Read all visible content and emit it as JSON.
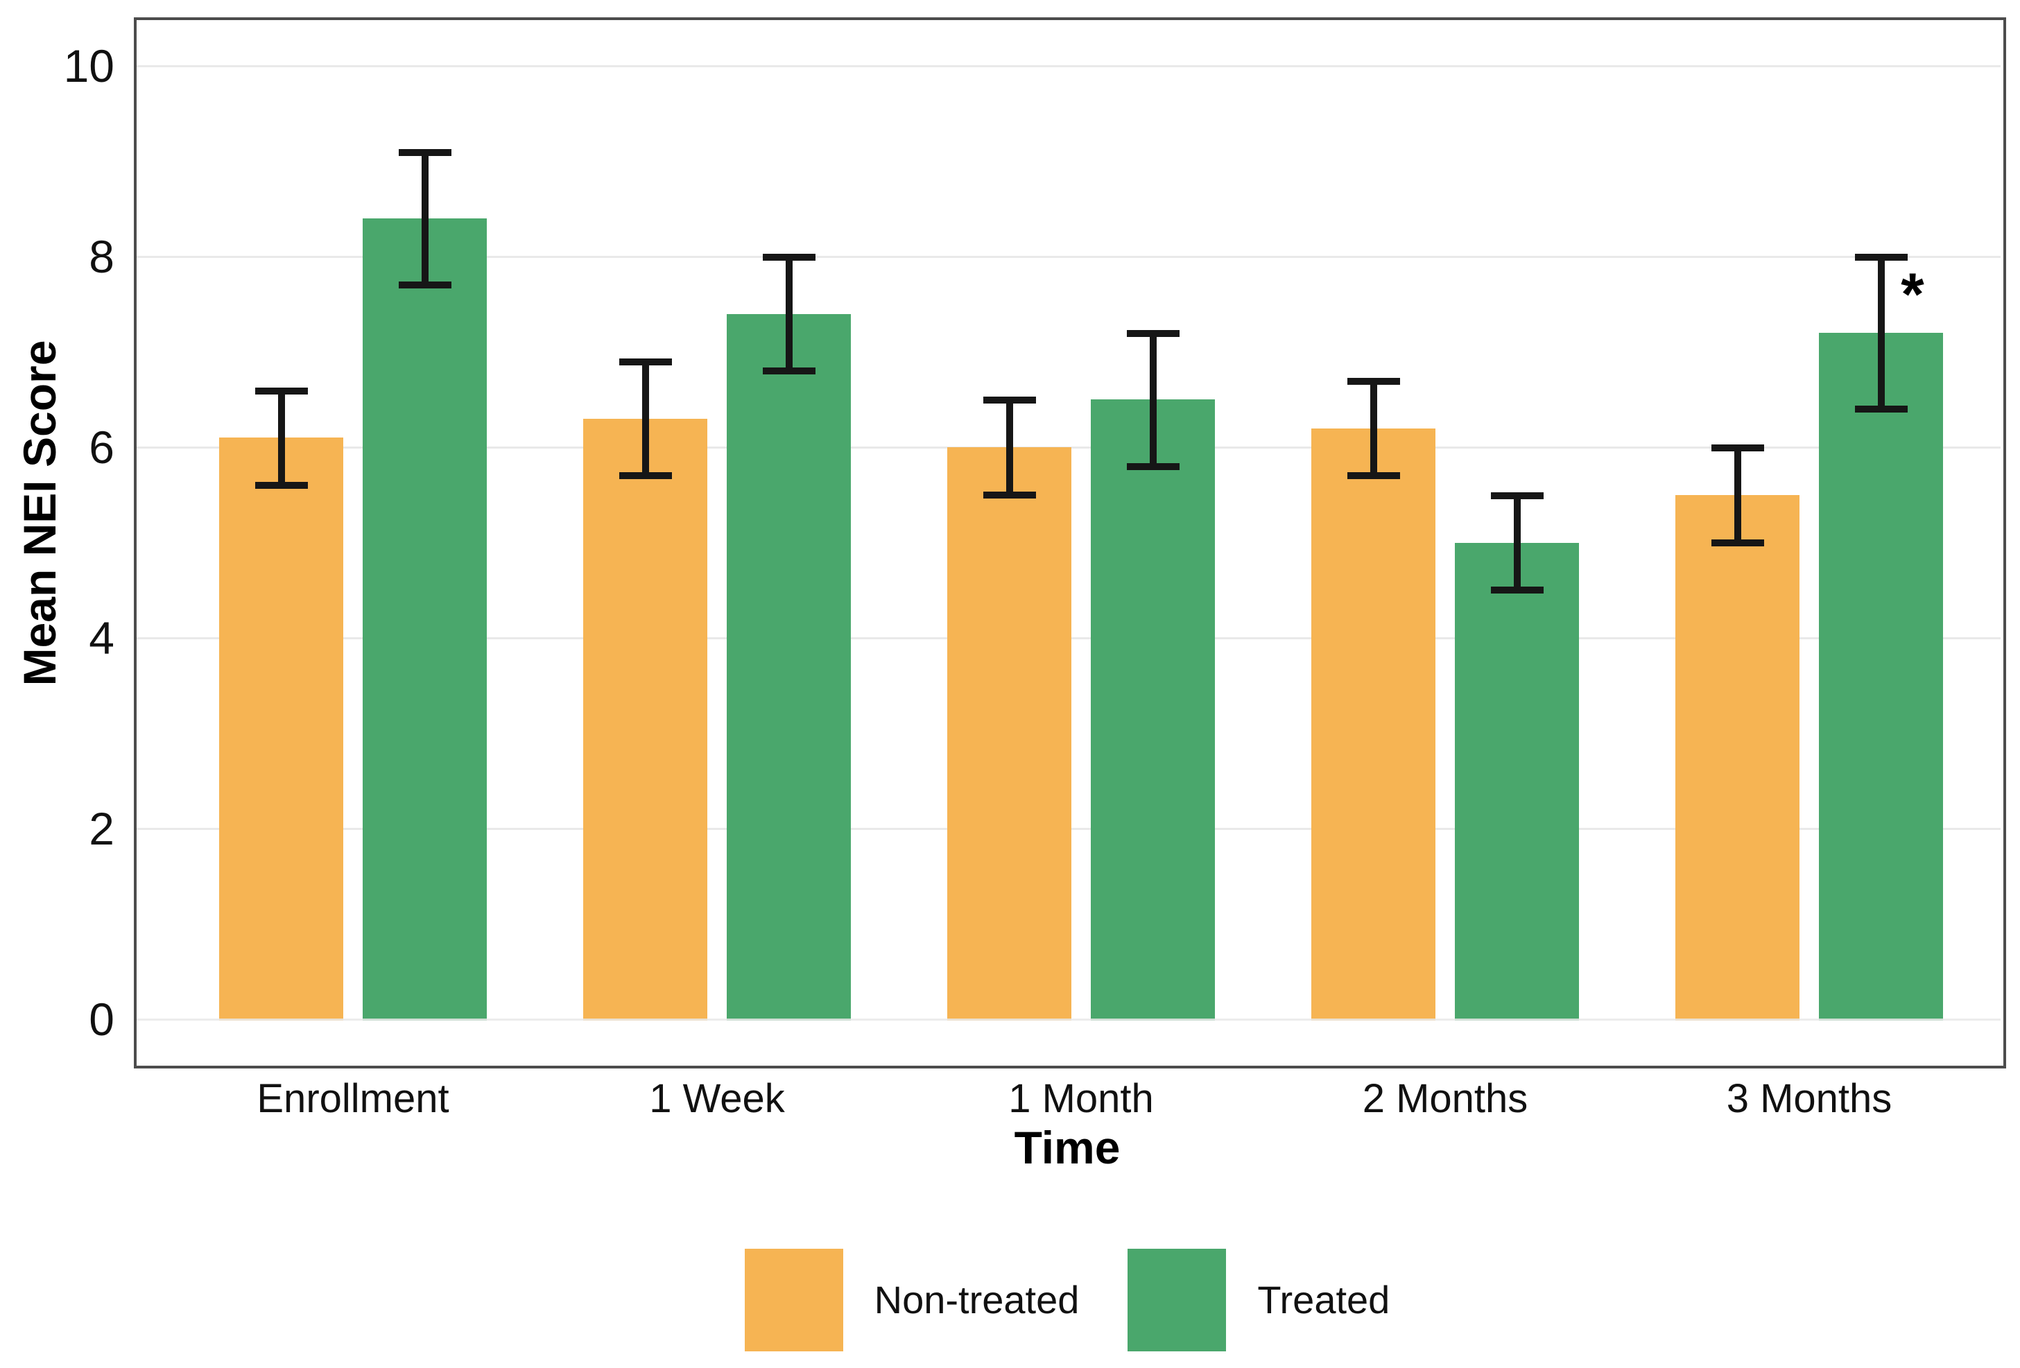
{
  "chart_data": {
    "type": "bar",
    "title": "",
    "categories": [
      "Enrollment",
      "1 Week",
      "1 Month",
      "2 Months",
      "3 Months"
    ],
    "series": [
      {
        "name": "Non-treated",
        "color": "#F6B453",
        "values": [
          6.1,
          6.3,
          6.0,
          6.2,
          5.5
        ],
        "error_low": [
          5.6,
          5.7,
          5.5,
          5.7,
          5.0
        ],
        "error_high": [
          6.6,
          6.9,
          6.5,
          6.7,
          6.0
        ]
      },
      {
        "name": "Treated",
        "color": "#4AA76C",
        "values": [
          8.4,
          7.4,
          6.5,
          5.0,
          7.2
        ],
        "error_low": [
          7.7,
          6.8,
          5.8,
          4.5,
          6.4
        ],
        "error_high": [
          9.1,
          8.0,
          7.2,
          5.5,
          8.0
        ]
      }
    ],
    "xlabel": "Time",
    "ylabel": "Mean NEI Score",
    "yticks": [
      0,
      2,
      4,
      6,
      8,
      10
    ],
    "ylim": [
      0,
      10.5
    ],
    "grid": "horizontal",
    "legend_position": "bottom",
    "annotation": {
      "text": "*",
      "category": "3 Months",
      "series": "Treated"
    }
  },
  "colors": {
    "grid": "#e9e9e9",
    "frame": "#4c4c4c",
    "error_bar": "#161616",
    "text": "#111111"
  }
}
